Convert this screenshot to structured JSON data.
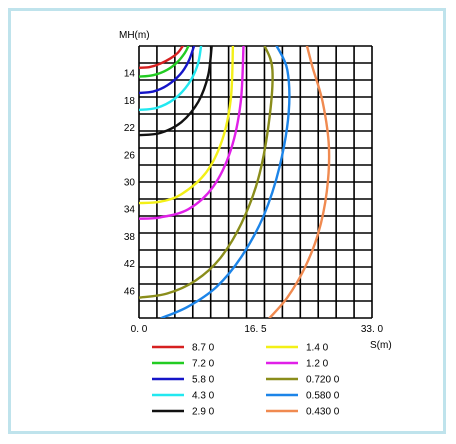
{
  "chart_data": {
    "type": "line",
    "title": "",
    "ylabel": "MH(m)",
    "xlabel": "S(m)",
    "xlim": [
      0,
      33
    ],
    "ylim": [
      10,
      50
    ],
    "y_inverted": true,
    "grid": true,
    "x_ticks": [
      "0. 0",
      "16. 5",
      "33. 0"
    ],
    "y_ticks": [
      "14",
      "18",
      "22",
      "26",
      "30",
      "34",
      "38",
      "42",
      "46"
    ],
    "legend_position": "bottom",
    "series": [
      {
        "name": "8.7 0",
        "color": "#d62020",
        "points": [
          [
            0,
            13.2
          ],
          [
            1.5,
            13.1
          ],
          [
            3,
            12.6
          ],
          [
            4.5,
            11.8
          ],
          [
            5.5,
            11.0
          ],
          [
            6.2,
            10.0
          ]
        ]
      },
      {
        "name": "7.2 0",
        "color": "#22cc22",
        "points": [
          [
            0,
            14.5
          ],
          [
            2,
            14.3
          ],
          [
            4,
            13.5
          ],
          [
            5.5,
            12.3
          ],
          [
            6.5,
            11.0
          ],
          [
            7.0,
            10.0
          ]
        ]
      },
      {
        "name": "5.8 0",
        "color": "#1515c8",
        "points": [
          [
            0,
            16.9
          ],
          [
            2,
            16.7
          ],
          [
            4,
            15.8
          ],
          [
            5.8,
            14.2
          ],
          [
            7.0,
            12.3
          ],
          [
            7.8,
            10.0
          ]
        ]
      },
      {
        "name": "4.3 0",
        "color": "#22e8f0",
        "points": [
          [
            0,
            19.4
          ],
          [
            2.5,
            19.1
          ],
          [
            5,
            17.8
          ],
          [
            7,
            15.6
          ],
          [
            8.3,
            12.8
          ],
          [
            8.8,
            10.0
          ]
        ]
      },
      {
        "name": "2.9 0",
        "color": "#111111",
        "points": [
          [
            0,
            23.1
          ],
          [
            3,
            22.8
          ],
          [
            6,
            21.2
          ],
          [
            8.4,
            18.2
          ],
          [
            9.8,
            14.3
          ],
          [
            10.3,
            10.0
          ]
        ]
      },
      {
        "name": "1.4 0",
        "color": "#f3f017",
        "points": [
          [
            0,
            33.1
          ],
          [
            3,
            32.9
          ],
          [
            6,
            31.8
          ],
          [
            9.5,
            28.6
          ],
          [
            11.8,
            23.8
          ],
          [
            13.0,
            17.8
          ],
          [
            13.3,
            10.0
          ]
        ]
      },
      {
        "name": "1.2 0",
        "color": "#e020e8",
        "points": [
          [
            0,
            35.4
          ],
          [
            3,
            35.2
          ],
          [
            7,
            34.0
          ],
          [
            10.5,
            30.7
          ],
          [
            13.0,
            25.3
          ],
          [
            14.4,
            18.3
          ],
          [
            14.8,
            10.0
          ]
        ]
      },
      {
        "name": "0.720 0",
        "color": "#8a8d1b",
        "points": [
          [
            0,
            47.0
          ],
          [
            4,
            46.4
          ],
          [
            8,
            44.5
          ],
          [
            11.5,
            41.2
          ],
          [
            14.5,
            36.1
          ],
          [
            16.9,
            29.5
          ],
          [
            18.4,
            21.2
          ],
          [
            18.9,
            13.5
          ],
          [
            17.8,
            10.0
          ]
        ]
      },
      {
        "name": "0.580 0",
        "color": "#1c84e8",
        "points": [
          [
            3.2,
            50.0
          ],
          [
            7,
            48.3
          ],
          [
            11,
            45.4
          ],
          [
            14.5,
            41.0
          ],
          [
            17.6,
            35.1
          ],
          [
            19.9,
            27.8
          ],
          [
            21.2,
            19.8
          ],
          [
            21.0,
            13.5
          ],
          [
            19.5,
            10.0
          ]
        ]
      },
      {
        "name": "0.430 0",
        "color": "#f08a50",
        "points": [
          [
            18.5,
            50.0
          ],
          [
            21,
            47.0
          ],
          [
            23.4,
            42.8
          ],
          [
            25.4,
            37.5
          ],
          [
            26.6,
            31.4
          ],
          [
            26.9,
            24.8
          ],
          [
            26.0,
            18.2
          ],
          [
            24.6,
            13.2
          ],
          [
            23.8,
            10.0
          ]
        ]
      }
    ]
  }
}
